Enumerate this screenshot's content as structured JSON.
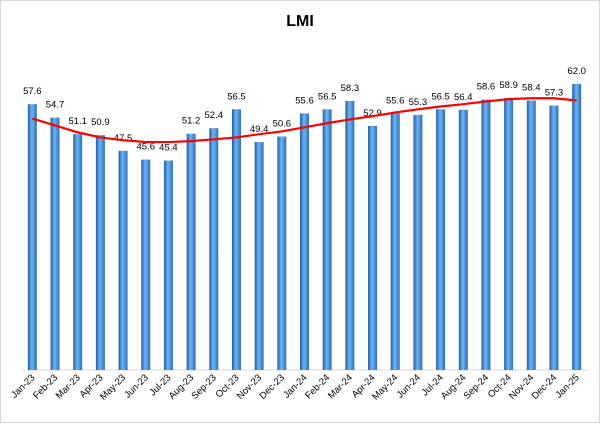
{
  "chart_data": {
    "type": "bar",
    "title": "LMI",
    "categories": [
      "Jan-23",
      "Feb-23",
      "Mar-23",
      "Apr-23",
      "May-23",
      "Jun-23",
      "Jul-23",
      "Aug-23",
      "Sep-23",
      "Oct-23",
      "Nov-23",
      "Dec-23",
      "Jan-24",
      "Feb-24",
      "Mar-24",
      "Apr-24",
      "May-24",
      "Jun-24",
      "Jul-24",
      "Aug-24",
      "Sep-24",
      "Oct-24",
      "Nov-24",
      "Dec-24",
      "Jan-25"
    ],
    "values": [
      57.6,
      54.7,
      51.1,
      50.9,
      47.5,
      45.6,
      45.4,
      51.2,
      52.4,
      56.5,
      49.4,
      50.6,
      55.6,
      56.5,
      58.3,
      52.9,
      55.6,
      55.3,
      56.5,
      56.4,
      58.6,
      58.9,
      58.4,
      57.3,
      62
    ],
    "value_labels": [
      "57.6",
      "54.7",
      "51.1",
      "50.9",
      "47.5",
      "45.6",
      "45.4",
      "51.2",
      "52.4",
      "56.5",
      "49.4",
      "50.6",
      "55.6",
      "56.5",
      "58.3",
      "52.9",
      "55.6",
      "55.3",
      "56.5",
      "56.4",
      "58.6",
      "58.9",
      "58.4",
      "57.3",
      "62.0"
    ],
    "color": "#3d8fd8",
    "ylim": [
      0,
      70
    ],
    "trendline": {
      "color": "#ff0000",
      "values": [
        54.5,
        53,
        51.5,
        50.4,
        49.8,
        49.4,
        49.4,
        49.6,
        50,
        50.4,
        51.1,
        51.7,
        52.6,
        53.5,
        54.3,
        55,
        55.8,
        56.5,
        57.1,
        57.6,
        58.2,
        58.7,
        58.9,
        58.9,
        58.4
      ]
    }
  }
}
